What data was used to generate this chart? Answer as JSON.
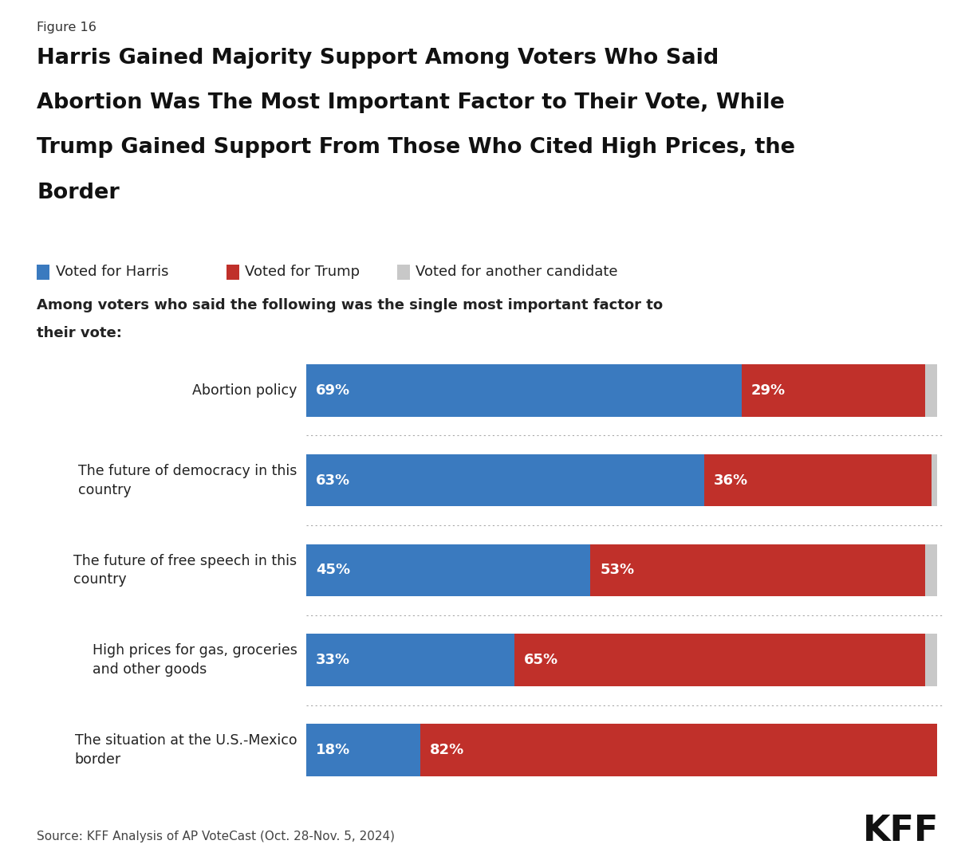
{
  "figure_label": "Figure 16",
  "title_line1": "Harris Gained Majority Support Among Voters Who Said",
  "title_line2": "Abortion Was The Most Important Factor to Their Vote, While",
  "title_line3": "Trump Gained Support From Those Who Cited High Prices, the",
  "title_line4": "Border",
  "subtitle_line1": "Among voters who said the following was the single most important factor to",
  "subtitle_line2": "their vote:",
  "categories": [
    "Abortion policy",
    "The future of democracy in this\ncountry",
    "The future of free speech in this\ncountry",
    "High prices for gas, groceries\nand other goods",
    "The situation at the U.S.-Mexico\nborder"
  ],
  "harris_values": [
    69,
    63,
    45,
    33,
    18
  ],
  "trump_values": [
    29,
    36,
    53,
    65,
    82
  ],
  "other_values": [
    2,
    1,
    2,
    2,
    0
  ],
  "harris_color": "#3a7abf",
  "trump_color": "#c0302a",
  "other_color": "#c8c8c8",
  "harris_label": "Voted for Harris",
  "trump_label": "Voted for Trump",
  "other_label": "Voted for another candidate",
  "source": "Source: KFF Analysis of AP VoteCast (Oct. 28-Nov. 5, 2024)",
  "background_color": "#ffffff",
  "text_color": "#222222"
}
